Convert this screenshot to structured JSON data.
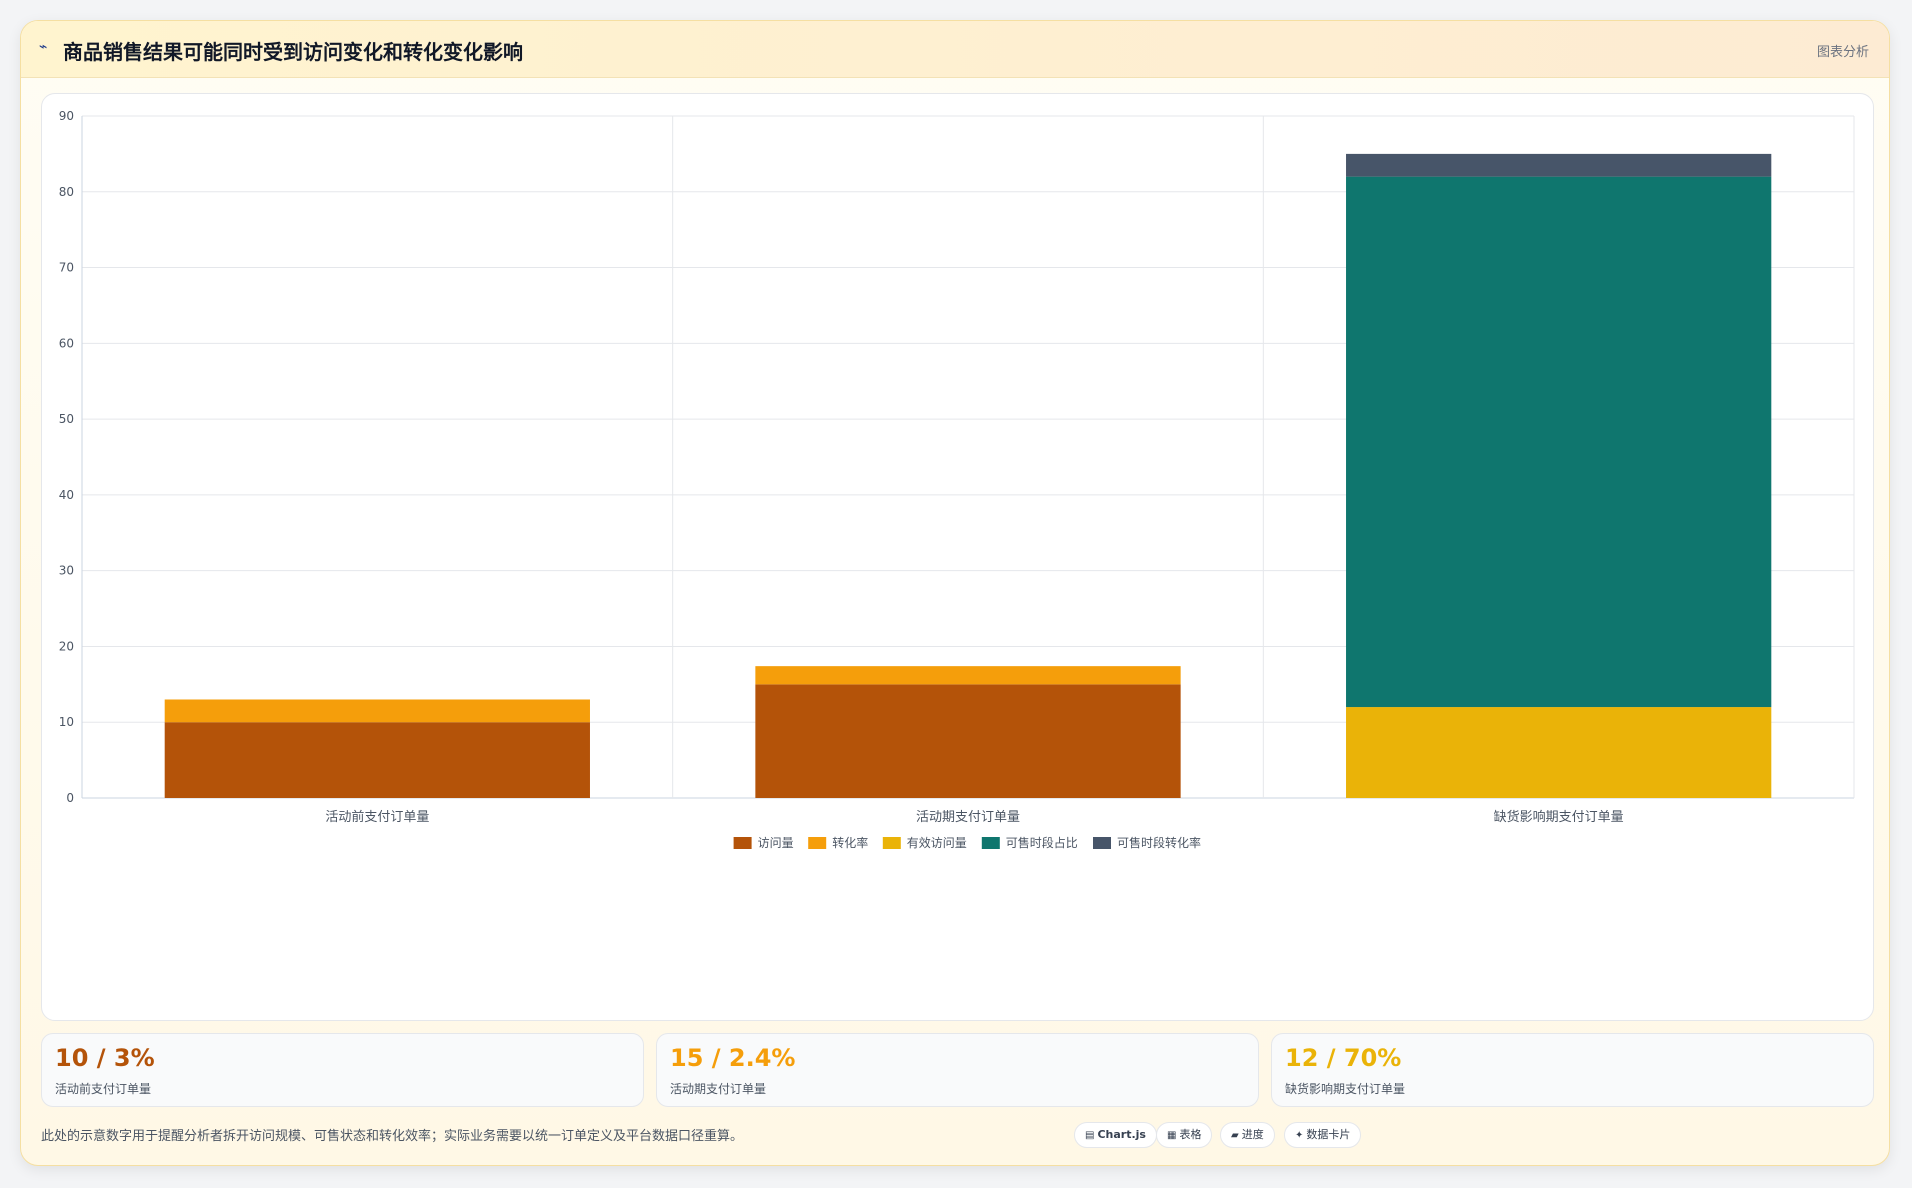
{
  "header": {
    "icon": "chart-line-icon",
    "title": "商品销售结果可能同时受到访问变化和转化变化影响",
    "tag": "图表分析"
  },
  "colors": {
    "访问量": "#b45309",
    "转化率": "#f59e0b",
    "有效访问量": "#eab308",
    "可售时段占比": "#0f766e",
    "可售时段转化率": "#475569"
  },
  "chart_data": {
    "type": "bar",
    "stacked": true,
    "categories": [
      "活动前支付订单量",
      "活动期支付订单量",
      "缺货影响期支付订单量"
    ],
    "series": [
      {
        "name": "访问量",
        "values": [
          10,
          15,
          0
        ]
      },
      {
        "name": "转化率",
        "values": [
          3,
          2.4,
          0
        ]
      },
      {
        "name": "有效访问量",
        "values": [
          0,
          0,
          12
        ]
      },
      {
        "name": "可售时段占比",
        "values": [
          0,
          0,
          70
        ]
      },
      {
        "name": "可售时段转化率",
        "values": [
          0,
          0,
          3
        ]
      }
    ],
    "ylim": [
      0,
      90
    ],
    "yticks": [
      0,
      10,
      20,
      30,
      40,
      50,
      60,
      70,
      80,
      90
    ],
    "grid": true,
    "legend": "bottom"
  },
  "stats": [
    {
      "value": "10 / 3%",
      "label": "活动前支付订单量",
      "color": "#b45309"
    },
    {
      "value": "15 / 2.4%",
      "label": "活动期支付订单量",
      "color": "#f59e0b"
    },
    {
      "value": "12 / 70%",
      "label": "缺货影响期支付订单量",
      "color": "#eab308"
    }
  ],
  "footer": {
    "note": "此处的示意数字用于提醒分析者拆开访问规模、可售状态和转化效率；实际业务需要以统一订单定义及平台数据口径重算。",
    "chips": [
      {
        "icon": "bar-chart-icon",
        "glyph": "▤",
        "label": "Chart.js"
      },
      {
        "icon": "table-icon",
        "glyph": "▦",
        "label": "表格"
      },
      {
        "icon": "progress-icon",
        "glyph": "▰",
        "label": "进度"
      },
      {
        "icon": "sparkle-icon",
        "glyph": "✦",
        "label": "数据卡片"
      }
    ]
  }
}
